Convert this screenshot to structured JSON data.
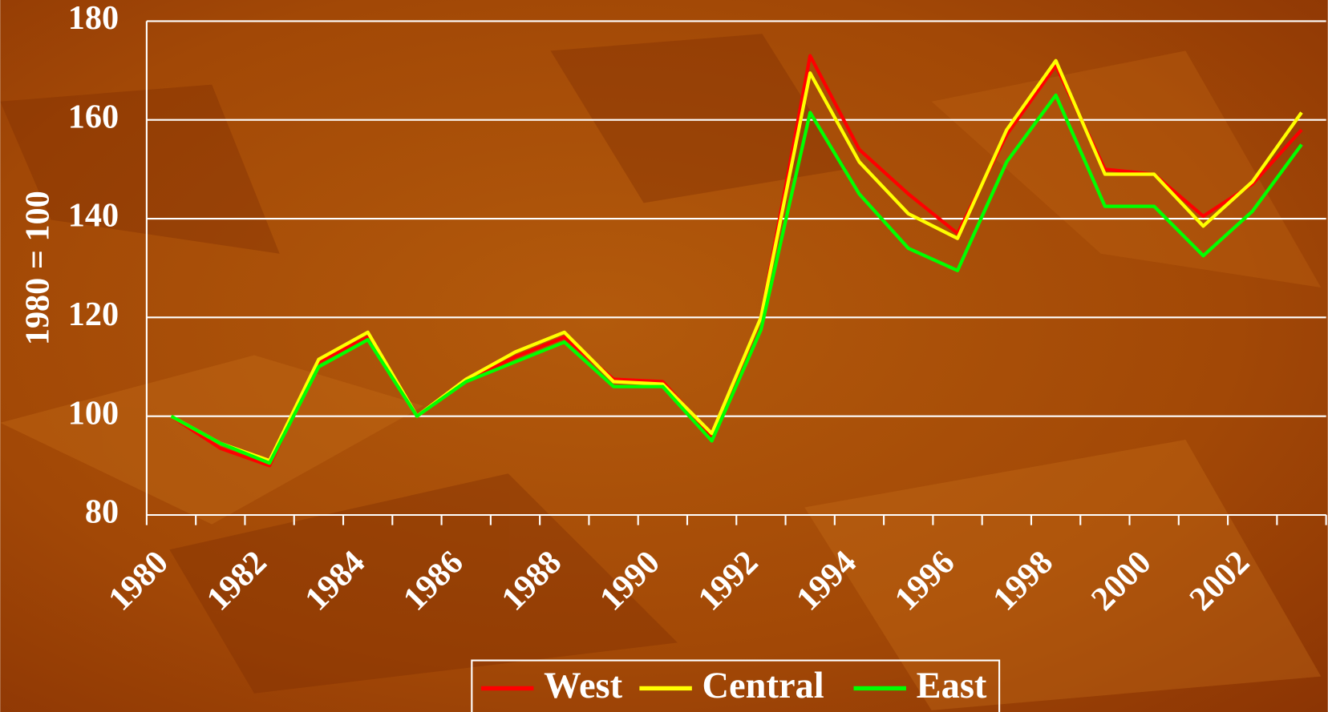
{
  "chart_data": {
    "type": "line",
    "y_label": "1980 = 100",
    "categories": [
      "1980",
      null,
      "1982",
      null,
      "1984",
      null,
      "1986",
      null,
      "1988",
      null,
      "1990",
      null,
      "1992",
      null,
      "1994",
      null,
      "1996",
      null,
      "1998",
      null,
      "2000",
      null,
      "2002",
      null
    ],
    "series": [
      {
        "name": "West",
        "color": "#ff0000",
        "values": [
          100,
          93.5,
          90,
          111,
          116,
          100,
          107,
          112,
          116,
          107.5,
          107,
          96,
          120,
          173,
          154,
          145,
          137,
          157,
          171,
          150,
          149,
          140.5,
          147,
          158
        ]
      },
      {
        "name": "Central",
        "color": "#ffff00",
        "values": [
          100,
          94.5,
          91,
          111.5,
          117,
          100,
          107.5,
          113,
          117,
          107,
          106.5,
          96.5,
          120,
          169.5,
          151.5,
          141,
          136,
          158,
          172,
          149,
          149,
          138.5,
          147.5,
          161.5
        ]
      },
      {
        "name": "East",
        "color": "#00ff00",
        "values": [
          100,
          94.5,
          90.5,
          110,
          115.5,
          100,
          107,
          111,
          115,
          106,
          106,
          95,
          117.5,
          161.5,
          145,
          134,
          129.5,
          151.5,
          165,
          142.5,
          142.5,
          132.5,
          141.5,
          155
        ]
      }
    ],
    "ylim": [
      80,
      180
    ],
    "yticks": [
      80,
      100,
      120,
      140,
      160,
      180
    ],
    "grid": true
  }
}
